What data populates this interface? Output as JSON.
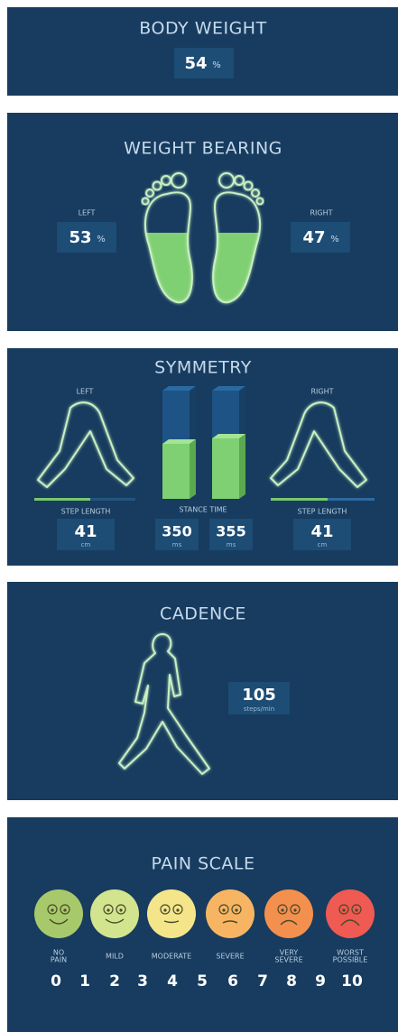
{
  "body_weight": {
    "title": "BODY WEIGHT",
    "value": "54",
    "unit": "%"
  },
  "weight_bearing": {
    "title": "WEIGHT BEARING",
    "left": {
      "label": "LEFT",
      "value": "53",
      "unit": "%"
    },
    "right": {
      "label": "RIGHT",
      "value": "47",
      "unit": "%"
    }
  },
  "symmetry": {
    "title": "SYMMETRY",
    "left": {
      "label": "LEFT",
      "step_length_label": "STEP LENGTH",
      "value": "41",
      "unit": "cm"
    },
    "right": {
      "label": "RIGHT",
      "step_length_label": "STEP LENGTH",
      "value": "41",
      "unit": "cm"
    },
    "stance_time": {
      "label": "STANCE TIME",
      "left": {
        "value": "350",
        "unit": "ms"
      },
      "right": {
        "value": "355",
        "unit": "ms"
      }
    }
  },
  "cadence": {
    "title": "CADENCE",
    "value": "105",
    "unit": "steps/min"
  },
  "pain_scale": {
    "title": "PAIN SCALE",
    "faces": [
      {
        "label": [
          "NO",
          "PAIN"
        ]
      },
      {
        "label": [
          "MILD"
        ]
      },
      {
        "label": [
          "MODERATE"
        ]
      },
      {
        "label": [
          "SEVERE"
        ]
      },
      {
        "label": [
          "VERY",
          "SEVERE"
        ]
      },
      {
        "label": [
          "WORST",
          "POSSIBLE"
        ]
      }
    ],
    "numbers": [
      "0",
      "1",
      "2",
      "3",
      "4",
      "5",
      "6",
      "7",
      "8",
      "9",
      "10"
    ]
  }
}
